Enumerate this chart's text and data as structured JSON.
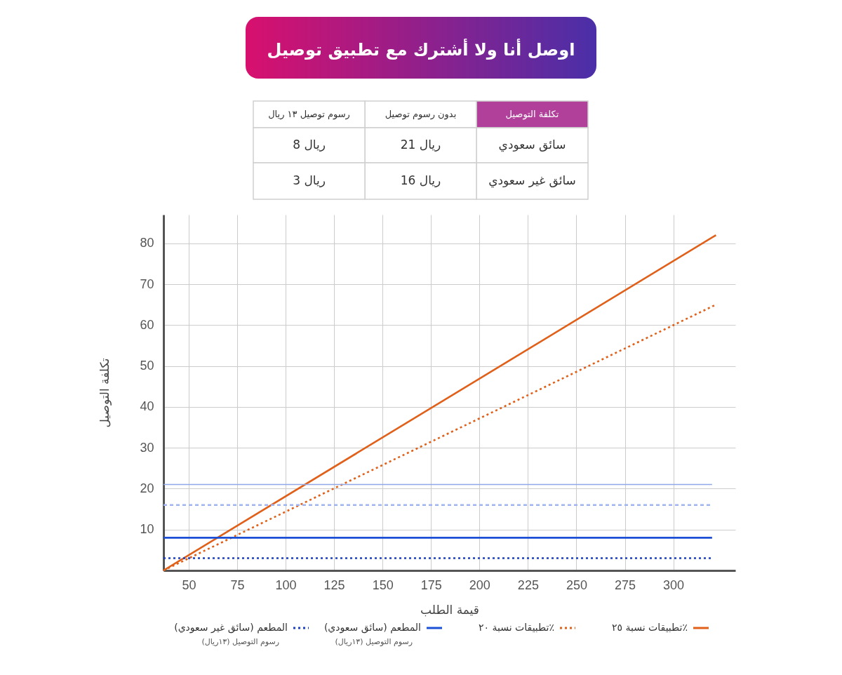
{
  "chart_data": {
    "type": "line",
    "title": "اوصل أنا ولا أشترك مع تطبيق توصيل",
    "xlabel": "قيمة الطلب",
    "ylabel": "تكلفة التوصيل",
    "xlim": [
      37,
      332
    ],
    "ylim": [
      0,
      87
    ],
    "xticks": [
      50,
      75,
      100,
      125,
      150,
      175,
      200,
      225,
      250,
      275,
      300
    ],
    "yticks": [
      10,
      20,
      30,
      40,
      50,
      60,
      70,
      80
    ],
    "grid": true,
    "legend": "bottom",
    "marker": "none",
    "series": [
      {
        "name": "تطبيقات نسبة ٢٥٪",
        "color": "#e0601a",
        "line_style": "solid",
        "x": [
          37,
          322
        ],
        "values": [
          0,
          82
        ]
      },
      {
        "name": "تطبيقات نسبة ٢٠٪",
        "color": "#e0601a",
        "line_style": "dotted",
        "x": [
          37,
          322
        ],
        "values": [
          0,
          65
        ]
      },
      {
        "name": "المطعم (سائق سعودي)\nرسوم التوصيل (١٣ريال)",
        "color": "#1a4fd6",
        "line_style": "solid",
        "x": [
          37,
          320
        ],
        "values": [
          8,
          8
        ]
      },
      {
        "name": "المطعم (سائق غير سعودي)\nرسوم التوصيل (١٣ريال)",
        "color": "#1a3fc0",
        "line_style": "dotted",
        "x": [
          37,
          320
        ],
        "values": [
          3,
          3
        ]
      },
      {
        "color": "#8fa8e8",
        "line_style": "solid",
        "x": [
          37,
          320
        ],
        "values": [
          21,
          21
        ]
      },
      {
        "color": "#a0b4f0",
        "line_style": "dashed",
        "x": [
          37,
          320
        ],
        "values": [
          16,
          16
        ]
      }
    ],
    "annotations": [
      "تكلفة التوصيل",
      "بدون رسوم توصيل",
      "رسوم توصيل ١٣ ريال",
      "سائق سعودي",
      "21 ريال",
      "8 ريال",
      "سائق غير سعودي",
      "16 ريال",
      "3 ريال"
    ]
  }
}
